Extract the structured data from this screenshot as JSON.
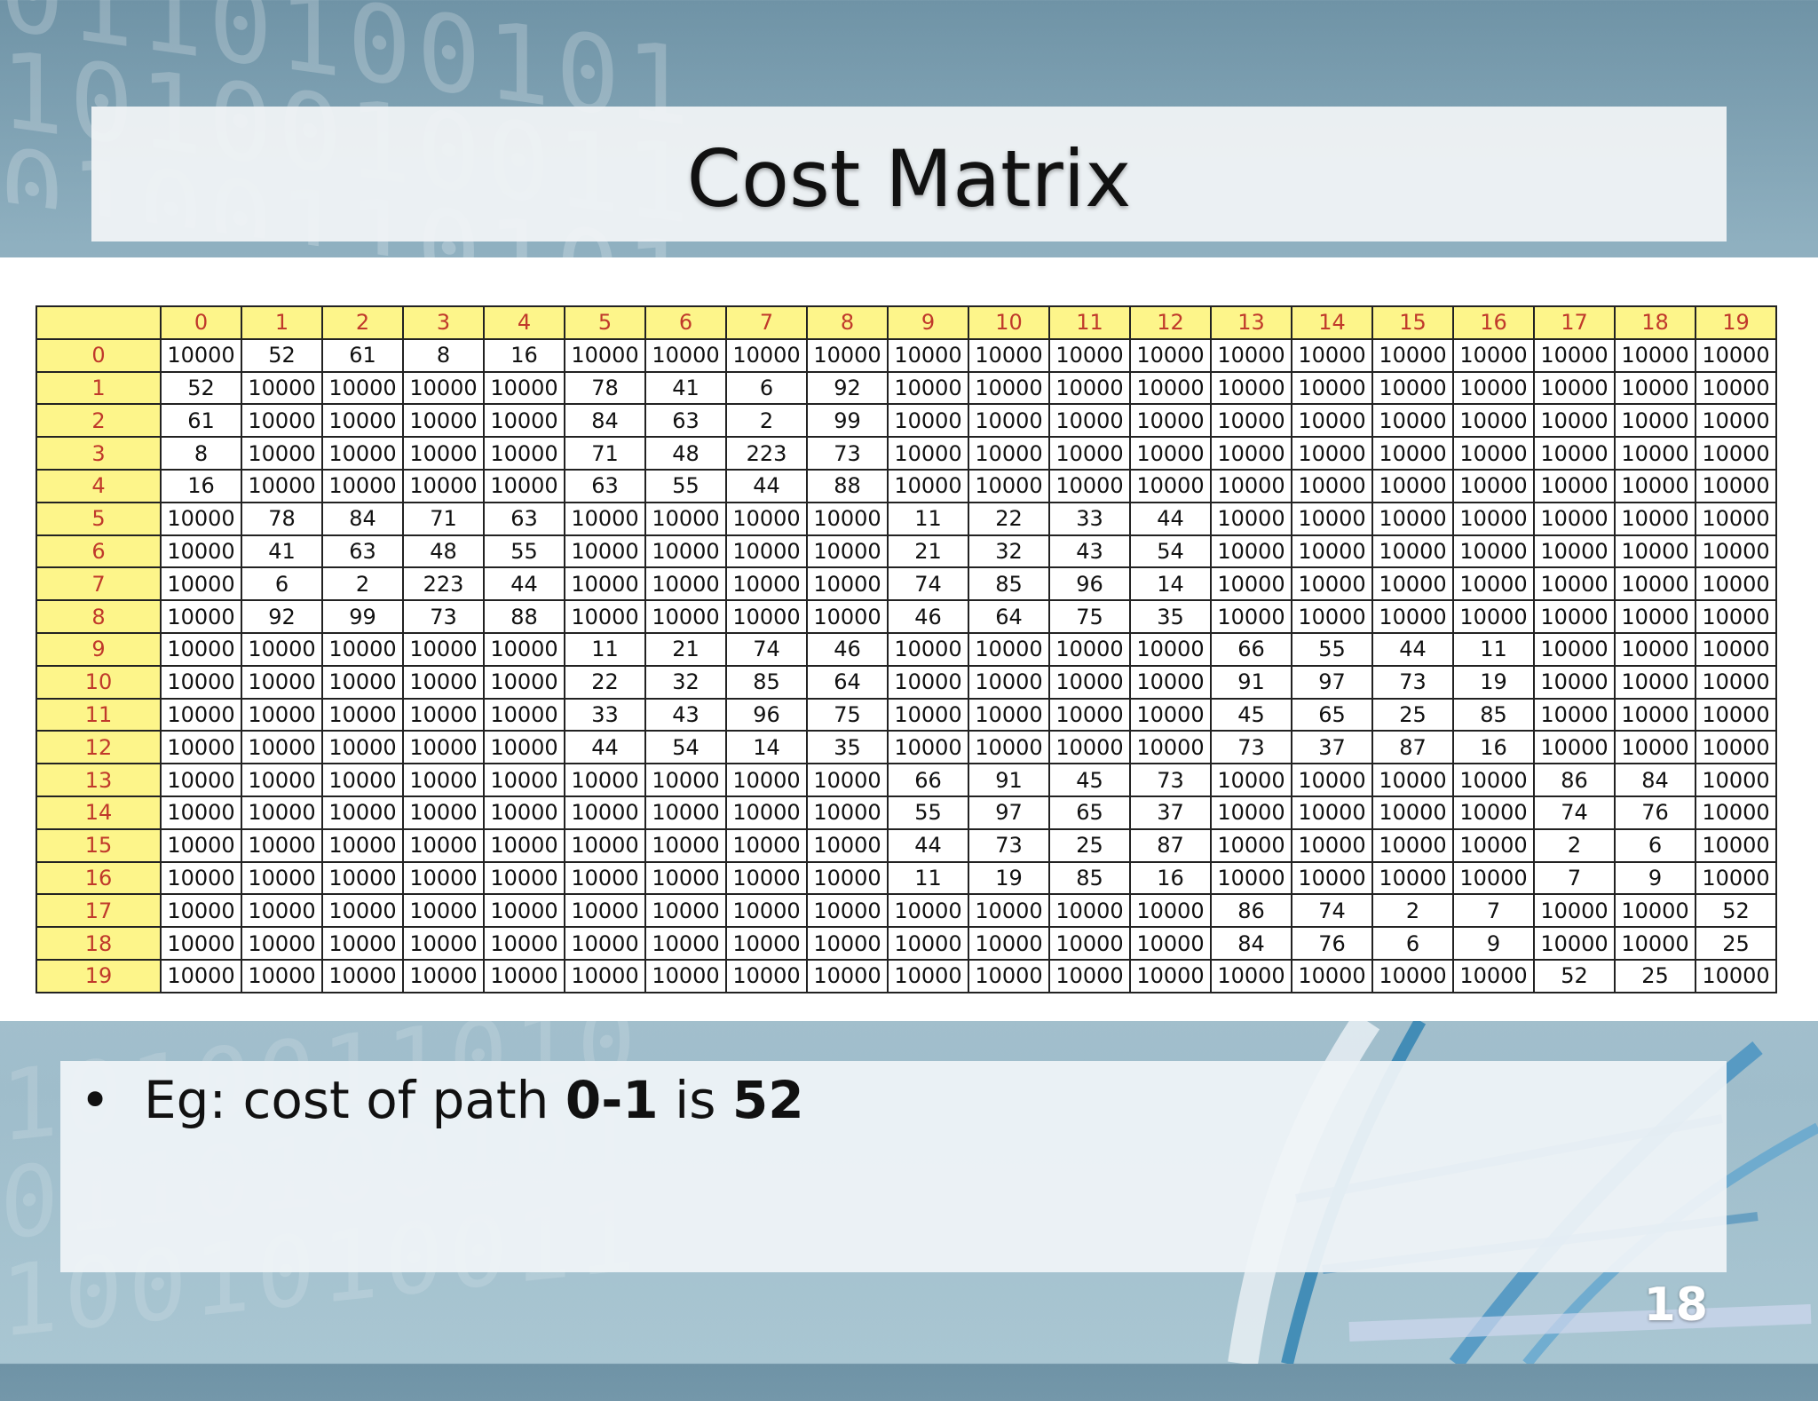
{
  "slide": {
    "title": "Cost Matrix",
    "slide_number": "18",
    "bullet": {
      "marker": "•",
      "prefix": "Eg: cost of path ",
      "path": "0-1",
      "middle": " is ",
      "cost": "52"
    }
  },
  "matrix": {
    "column_headers": [
      "0",
      "1",
      "2",
      "3",
      "4",
      "5",
      "6",
      "7",
      "8",
      "9",
      "10",
      "11",
      "12",
      "13",
      "14",
      "15",
      "16",
      "17",
      "18",
      "19"
    ],
    "rows": [
      {
        "label": "0",
        "cells": [
          "10000",
          "52",
          "61",
          "8",
          "16",
          "10000",
          "10000",
          "10000",
          "10000",
          "10000",
          "10000",
          "10000",
          "10000",
          "10000",
          "10000",
          "10000",
          "10000",
          "10000",
          "10000",
          "10000"
        ]
      },
      {
        "label": "1",
        "cells": [
          "52",
          "10000",
          "10000",
          "10000",
          "10000",
          "78",
          "41",
          "6",
          "92",
          "10000",
          "10000",
          "10000",
          "10000",
          "10000",
          "10000",
          "10000",
          "10000",
          "10000",
          "10000",
          "10000"
        ]
      },
      {
        "label": "2",
        "cells": [
          "61",
          "10000",
          "10000",
          "10000",
          "10000",
          "84",
          "63",
          "2",
          "99",
          "10000",
          "10000",
          "10000",
          "10000",
          "10000",
          "10000",
          "10000",
          "10000",
          "10000",
          "10000",
          "10000"
        ]
      },
      {
        "label": "3",
        "cells": [
          "8",
          "10000",
          "10000",
          "10000",
          "10000",
          "71",
          "48",
          "223",
          "73",
          "10000",
          "10000",
          "10000",
          "10000",
          "10000",
          "10000",
          "10000",
          "10000",
          "10000",
          "10000",
          "10000"
        ]
      },
      {
        "label": "4",
        "cells": [
          "16",
          "10000",
          "10000",
          "10000",
          "10000",
          "63",
          "55",
          "44",
          "88",
          "10000",
          "10000",
          "10000",
          "10000",
          "10000",
          "10000",
          "10000",
          "10000",
          "10000",
          "10000",
          "10000"
        ]
      },
      {
        "label": "5",
        "cells": [
          "10000",
          "78",
          "84",
          "71",
          "63",
          "10000",
          "10000",
          "10000",
          "10000",
          "11",
          "22",
          "33",
          "44",
          "10000",
          "10000",
          "10000",
          "10000",
          "10000",
          "10000",
          "10000"
        ]
      },
      {
        "label": "6",
        "cells": [
          "10000",
          "41",
          "63",
          "48",
          "55",
          "10000",
          "10000",
          "10000",
          "10000",
          "21",
          "32",
          "43",
          "54",
          "10000",
          "10000",
          "10000",
          "10000",
          "10000",
          "10000",
          "10000"
        ]
      },
      {
        "label": "7",
        "cells": [
          "10000",
          "6",
          "2",
          "223",
          "44",
          "10000",
          "10000",
          "10000",
          "10000",
          "74",
          "85",
          "96",
          "14",
          "10000",
          "10000",
          "10000",
          "10000",
          "10000",
          "10000",
          "10000"
        ]
      },
      {
        "label": "8",
        "cells": [
          "10000",
          "92",
          "99",
          "73",
          "88",
          "10000",
          "10000",
          "10000",
          "10000",
          "46",
          "64",
          "75",
          "35",
          "10000",
          "10000",
          "10000",
          "10000",
          "10000",
          "10000",
          "10000"
        ]
      },
      {
        "label": "9",
        "cells": [
          "10000",
          "10000",
          "10000",
          "10000",
          "10000",
          "11",
          "21",
          "74",
          "46",
          "10000",
          "10000",
          "10000",
          "10000",
          "66",
          "55",
          "44",
          "11",
          "10000",
          "10000",
          "10000"
        ]
      },
      {
        "label": "10",
        "cells": [
          "10000",
          "10000",
          "10000",
          "10000",
          "10000",
          "22",
          "32",
          "85",
          "64",
          "10000",
          "10000",
          "10000",
          "10000",
          "91",
          "97",
          "73",
          "19",
          "10000",
          "10000",
          "10000"
        ]
      },
      {
        "label": "11",
        "cells": [
          "10000",
          "10000",
          "10000",
          "10000",
          "10000",
          "33",
          "43",
          "96",
          "75",
          "10000",
          "10000",
          "10000",
          "10000",
          "45",
          "65",
          "25",
          "85",
          "10000",
          "10000",
          "10000"
        ]
      },
      {
        "label": "12",
        "cells": [
          "10000",
          "10000",
          "10000",
          "10000",
          "10000",
          "44",
          "54",
          "14",
          "35",
          "10000",
          "10000",
          "10000",
          "10000",
          "73",
          "37",
          "87",
          "16",
          "10000",
          "10000",
          "10000"
        ]
      },
      {
        "label": "13",
        "cells": [
          "10000",
          "10000",
          "10000",
          "10000",
          "10000",
          "10000",
          "10000",
          "10000",
          "10000",
          "66",
          "91",
          "45",
          "73",
          "10000",
          "10000",
          "10000",
          "10000",
          "86",
          "84",
          "10000"
        ]
      },
      {
        "label": "14",
        "cells": [
          "10000",
          "10000",
          "10000",
          "10000",
          "10000",
          "10000",
          "10000",
          "10000",
          "10000",
          "55",
          "97",
          "65",
          "37",
          "10000",
          "10000",
          "10000",
          "10000",
          "74",
          "76",
          "10000"
        ]
      },
      {
        "label": "15",
        "cells": [
          "10000",
          "10000",
          "10000",
          "10000",
          "10000",
          "10000",
          "10000",
          "10000",
          "10000",
          "44",
          "73",
          "25",
          "87",
          "10000",
          "10000",
          "10000",
          "10000",
          "2",
          "6",
          "10000"
        ]
      },
      {
        "label": "16",
        "cells": [
          "10000",
          "10000",
          "10000",
          "10000",
          "10000",
          "10000",
          "10000",
          "10000",
          "10000",
          "11",
          "19",
          "85",
          "16",
          "10000",
          "10000",
          "10000",
          "10000",
          "7",
          "9",
          "10000"
        ]
      },
      {
        "label": "17",
        "cells": [
          "10000",
          "10000",
          "10000",
          "10000",
          "10000",
          "10000",
          "10000",
          "10000",
          "10000",
          "10000",
          "10000",
          "10000",
          "10000",
          "86",
          "74",
          "2",
          "7",
          "10000",
          "10000",
          "52"
        ]
      },
      {
        "label": "18",
        "cells": [
          "10000",
          "10000",
          "10000",
          "10000",
          "10000",
          "10000",
          "10000",
          "10000",
          "10000",
          "10000",
          "10000",
          "10000",
          "10000",
          "84",
          "76",
          "6",
          "9",
          "10000",
          "10000",
          "25"
        ]
      },
      {
        "label": "19",
        "cells": [
          "10000",
          "10000",
          "10000",
          "10000",
          "10000",
          "10000",
          "10000",
          "10000",
          "10000",
          "10000",
          "10000",
          "10000",
          "10000",
          "10000",
          "10000",
          "10000",
          "10000",
          "52",
          "25",
          "10000"
        ]
      }
    ]
  },
  "colors": {
    "header_fill": "#fdf58a",
    "header_text": "#c0392b",
    "grid_line": "#222222"
  }
}
